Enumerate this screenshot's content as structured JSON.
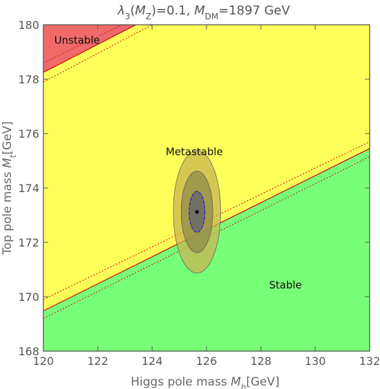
{
  "chart_data": {
    "type": "contour",
    "title_parts": {
      "lambda": "λ",
      "lambda_sub": "3",
      "lambda_arg_open": "(",
      "lambda_arg": "M",
      "lambda_arg_sub": "Z",
      "lambda_value": ")=0.1, ",
      "mass_symbol": "M",
      "mass_sub": "DM",
      "mass_value": "=1897 GeV"
    },
    "xlabel_parts": {
      "text": "Higgs pole mass ",
      "sym": "M",
      "sub": "h",
      "unit": "[GeV]"
    },
    "ylabel_parts": {
      "text": "Top pole mass ",
      "sym": "M",
      "sub": "t",
      "unit": "[GeV]"
    },
    "xlim": [
      120,
      132
    ],
    "ylim": [
      168,
      180
    ],
    "x_ticks": [
      120,
      122,
      124,
      126,
      128,
      130,
      132
    ],
    "y_ticks": [
      168,
      170,
      172,
      174,
      176,
      178,
      180
    ],
    "colors": {
      "stable": "#78ff78",
      "metastable": "#ffff5a",
      "unstable": "#f06a6a",
      "boundary": "#cc1111",
      "dashed_band": "#cc1111",
      "ellipse_outer": "#c8b452",
      "ellipse_middle": "#8f8b4a",
      "ellipse_inner": "#6a6a6a",
      "ellipse_dashed": "#2222cc",
      "frame": "#555555"
    },
    "lines": {
      "stability_boundary": {
        "points": [
          [
            120,
            169.48
          ],
          [
            132,
            175.45
          ]
        ]
      },
      "stability_band_upper": {
        "points": [
          [
            120,
            169.9
          ],
          [
            132,
            175.7
          ]
        ]
      },
      "stability_band_lower": {
        "points": [
          [
            120,
            169.2
          ],
          [
            132,
            175.15
          ]
        ]
      },
      "instability_boundary": {
        "points": [
          [
            120,
            178.25
          ],
          [
            123.4,
            180
          ]
        ]
      },
      "instability_band_upper": {
        "points": [
          [
            120,
            178.6
          ],
          [
            122.9,
            180
          ]
        ]
      },
      "instability_band_lower": {
        "points": [
          [
            120,
            177.9
          ],
          [
            124.0,
            180
          ]
        ]
      }
    },
    "central_point": {
      "x": 125.65,
      "y": 173.12
    },
    "ellipses": [
      {
        "name": "outer",
        "cx": 125.65,
        "cy": 173.12,
        "rx": 0.87,
        "ry": 2.25
      },
      {
        "name": "middle",
        "cx": 125.65,
        "cy": 173.12,
        "rx": 0.58,
        "ry": 1.5
      },
      {
        "name": "inner",
        "cx": 125.65,
        "cy": 173.12,
        "rx": 0.29,
        "ry": 0.75
      }
    ],
    "regions": {
      "unstable": "Unstable",
      "metastable": "Metastable",
      "stable": "Stable"
    },
    "region_label_positions": {
      "unstable": {
        "x": 120.4,
        "y": 179.3
      },
      "metastable": {
        "x": 124.5,
        "y": 175.2
      },
      "stable": {
        "x": 128.3,
        "y": 170.3
      }
    }
  }
}
